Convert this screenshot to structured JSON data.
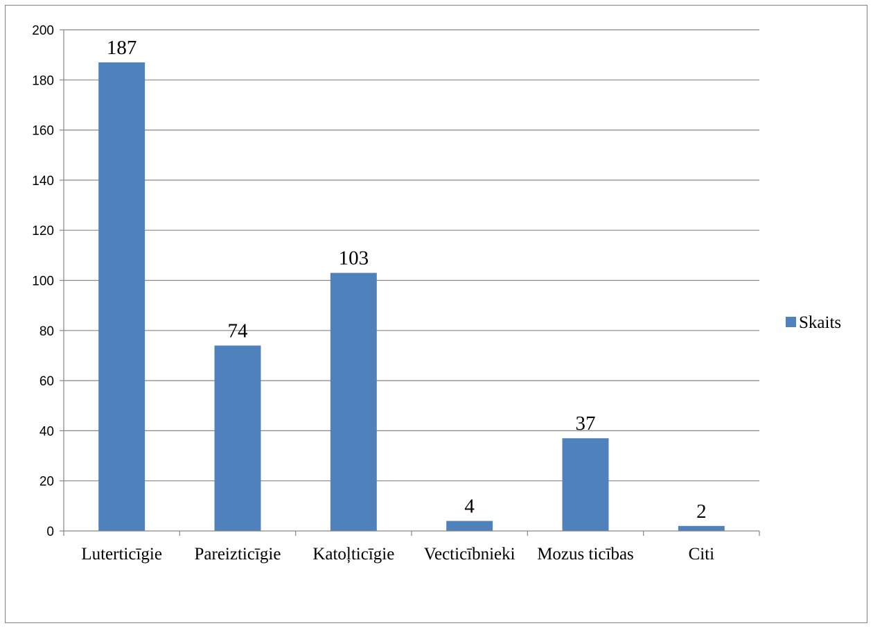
{
  "chart_data": {
    "type": "bar",
    "categories": [
      "Luterticīgie",
      "Pareizticīgie",
      "Katoļticīgie",
      "Vecticībnieki",
      "Mozus ticības",
      "Citi"
    ],
    "series": [
      {
        "name": "Skaits",
        "values": [
          187,
          74,
          103,
          4,
          37,
          2
        ],
        "color": "#4f81bd"
      }
    ],
    "title": "",
    "xlabel": "",
    "ylabel": "",
    "ylim": [
      0,
      200
    ],
    "yticks": [
      0,
      20,
      40,
      60,
      80,
      100,
      120,
      140,
      160,
      180,
      200
    ],
    "grid": true,
    "legend": "right",
    "data_labels": true
  }
}
